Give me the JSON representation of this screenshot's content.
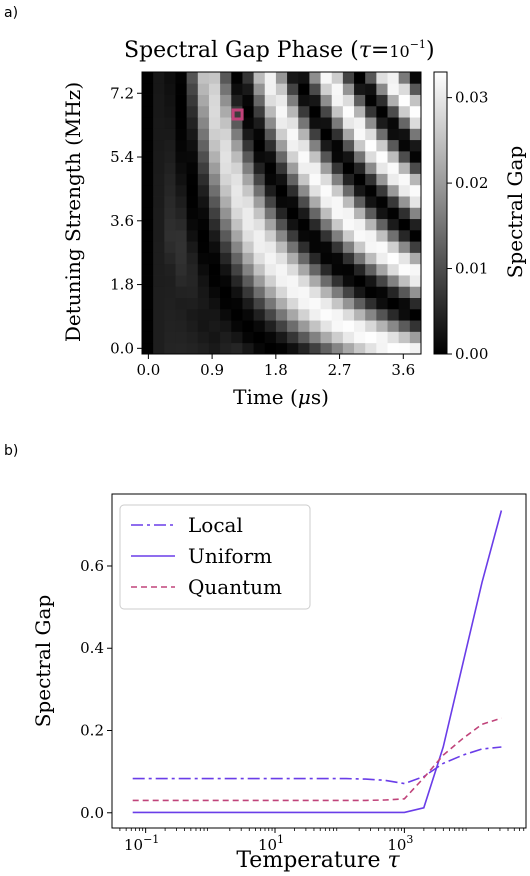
{
  "panel_a": {
    "label": "a)",
    "title_text": "Spectral Gap Phase (",
    "title_tau": "τ",
    "title_eq": "=",
    "title_base": "10",
    "title_exp": "−1",
    "title_close": ")",
    "xlabel_text": "Time (",
    "xlabel_mu": "μ",
    "xlabel_rest": "s)",
    "ylabel": "Detuning Strength (MHz)",
    "colorbar_label": "Spectral Gap"
  },
  "panel_b": {
    "label": "b)",
    "xlabel_text": "Temperature ",
    "xlabel_tau": "τ",
    "ylabel": "Spectral Gap"
  },
  "chart_data": [
    {
      "type": "heatmap",
      "title": "Spectral Gap Phase (τ=10^-1)",
      "xlabel": "Time (μs)",
      "ylabel": "Detuning Strength (MHz)",
      "colorbar_label": "Spectral Gap",
      "xlim": [
        -0.09,
        3.85
      ],
      "ylim": [
        -0.16,
        7.8
      ],
      "xticks": [
        {
          "value": 0.0,
          "label": "0.0"
        },
        {
          "value": 0.9,
          "label": "0.9"
        },
        {
          "value": 1.8,
          "label": "1.8"
        },
        {
          "value": 2.7,
          "label": "2.7"
        },
        {
          "value": 3.6,
          "label": "3.6"
        }
      ],
      "yticks": [
        {
          "value": 0.0,
          "label": "0.0"
        },
        {
          "value": 1.8,
          "label": "1.8"
        },
        {
          "value": 3.6,
          "label": "3.6"
        },
        {
          "value": 5.4,
          "label": "5.4"
        },
        {
          "value": 7.2,
          "label": "7.2"
        }
      ],
      "colorbar_ticks": [
        {
          "value": 0.0,
          "label": "0.00"
        },
        {
          "value": 0.01,
          "label": "0.01"
        },
        {
          "value": 0.02,
          "label": "0.02"
        },
        {
          "value": 0.03,
          "label": "0.03"
        }
      ],
      "colorbar_range": [
        0,
        0.033
      ],
      "colormap": "gray",
      "grid_x_count": 25,
      "grid_y_count": 25,
      "marker": {
        "x": 1.26,
        "y": 6.6,
        "color": "#c0437a"
      }
    },
    {
      "type": "line",
      "xlabel": "Temperature τ",
      "ylabel": "Spectral Gap",
      "xscale": "log",
      "xlim_log10": [
        -1.52,
        4.88
      ],
      "ylim": [
        -0.037,
        0.775
      ],
      "xticks": [
        {
          "value_log10": -1,
          "base": "10",
          "exp": "−1"
        },
        {
          "value_log10": 1,
          "base": "10",
          "exp": "1"
        },
        {
          "value_log10": 3,
          "base": "10",
          "exp": "3"
        }
      ],
      "yticks": [
        {
          "value": 0.0,
          "label": "0.0"
        },
        {
          "value": 0.2,
          "label": "0.2"
        },
        {
          "value": 0.4,
          "label": "0.4"
        },
        {
          "value": 0.6,
          "label": "0.6"
        }
      ],
      "legend_position": "upper-left",
      "x_log10": [
        -1.2,
        -0.9,
        -0.6,
        -0.3,
        0.0,
        0.3,
        0.6,
        0.9,
        1.2,
        1.5,
        1.8,
        2.1,
        2.4,
        2.7,
        3.0,
        3.3,
        3.6,
        3.9,
        4.2,
        4.5
      ],
      "series": [
        {
          "name": "Local",
          "color": "#6a3de8",
          "dash": "12,4,3,4",
          "values": [
            0.083,
            0.083,
            0.083,
            0.083,
            0.083,
            0.083,
            0.083,
            0.083,
            0.083,
            0.083,
            0.083,
            0.083,
            0.082,
            0.079,
            0.071,
            0.088,
            0.12,
            0.14,
            0.155,
            0.16
          ]
        },
        {
          "name": "Uniform",
          "color": "#6a3de8",
          "dash": "",
          "values": [
            0.001,
            0.001,
            0.001,
            0.001,
            0.001,
            0.001,
            0.001,
            0.001,
            0.001,
            0.001,
            0.001,
            0.001,
            0.001,
            0.001,
            0.001,
            0.012,
            0.16,
            0.36,
            0.56,
            0.735
          ]
        },
        {
          "name": "Quantum",
          "color": "#c0437a",
          "dash": "6,4",
          "values": [
            0.03,
            0.03,
            0.03,
            0.03,
            0.03,
            0.03,
            0.03,
            0.03,
            0.03,
            0.03,
            0.03,
            0.03,
            0.03,
            0.031,
            0.034,
            0.085,
            0.14,
            0.18,
            0.215,
            0.23
          ]
        }
      ]
    }
  ]
}
